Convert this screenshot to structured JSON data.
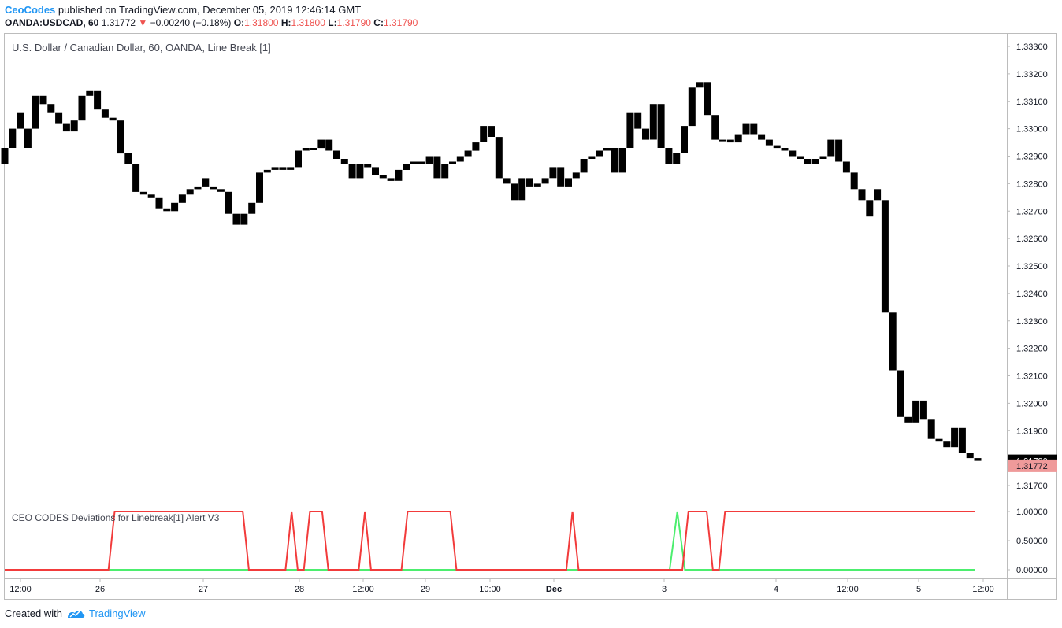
{
  "header": {
    "author": "CeoCodes",
    "published_text": "published on TradingView.com, December 05, 2019 12:46:14 GMT",
    "symbol": "OANDA:USDCAD, 60",
    "last": "1.31772",
    "change_arrow": "▼",
    "change": "−0.00240 (−0.18%)",
    "o_label": "O:",
    "o_value": "1.31800",
    "h_label": "H:",
    "h_value": "1.31800",
    "l_label": "L:",
    "l_value": "1.31790",
    "c_label": "C:",
    "c_value": "1.31790"
  },
  "footer": {
    "created_with": "Created with",
    "brand": "TradingView",
    "logo_icon": "tradingview-logo-icon"
  },
  "colors": {
    "bar": "#000000",
    "axis_border": "#bcbcbc",
    "text": "#131722",
    "down": "#ef5350",
    "last_tag": "#ef9a9a",
    "green_line": "#4cee6e",
    "red_line": "#f23b3b"
  },
  "chart_data": [
    {
      "type": "bar",
      "subtype": "line_break",
      "title": "U.S. Dollar / Canadian Dollar, 60, OANDA, Line Break [1]",
      "ylim": [
        1.3165,
        1.3335
      ],
      "y_ticks": [
        "1.33300",
        "1.33200",
        "1.33100",
        "1.33000",
        "1.32900",
        "1.32800",
        "1.32700",
        "1.32600",
        "1.32500",
        "1.32400",
        "1.32300",
        "1.32200",
        "1.32100",
        "1.32000",
        "1.31900",
        "1.31700"
      ],
      "price_tags": [
        {
          "label": "1.31790",
          "value": 1.3179,
          "style": "dark"
        },
        {
          "label": "1.31772",
          "value": 1.31772,
          "style": "light"
        }
      ],
      "x_labels": [
        "12:00",
        "26",
        "27",
        "28",
        "12:00",
        "29",
        "10:00",
        "Dec",
        "3",
        "4",
        "12:00",
        "5",
        "12:00"
      ],
      "bricks": [
        [
          1.3287,
          1.3293
        ],
        [
          1.3293,
          1.33
        ],
        [
          1.33,
          1.3306
        ],
        [
          1.33,
          1.3293
        ],
        [
          1.33,
          1.3312
        ],
        [
          1.3312,
          1.3309
        ],
        [
          1.3309,
          1.3306
        ],
        [
          1.3306,
          1.3302
        ],
        [
          1.3302,
          1.3299
        ],
        [
          1.3299,
          1.3303
        ],
        [
          1.3303,
          1.3312
        ],
        [
          1.3312,
          1.3314
        ],
        [
          1.3314,
          1.3307
        ],
        [
          1.3307,
          1.3304
        ],
        [
          1.3304,
          1.3303
        ],
        [
          1.3303,
          1.3291
        ],
        [
          1.3291,
          1.3287
        ],
        [
          1.3287,
          1.3277
        ],
        [
          1.3277,
          1.3276
        ],
        [
          1.3276,
          1.3275
        ],
        [
          1.3275,
          1.3271
        ],
        [
          1.3271,
          1.327
        ],
        [
          1.327,
          1.3273
        ],
        [
          1.3273,
          1.3276
        ],
        [
          1.3276,
          1.3278
        ],
        [
          1.3278,
          1.3279
        ],
        [
          1.3279,
          1.3282
        ],
        [
          1.3279,
          1.3278
        ],
        [
          1.3278,
          1.3277
        ],
        [
          1.3277,
          1.3269
        ],
        [
          1.3269,
          1.3265
        ],
        [
          1.3265,
          1.3269
        ],
        [
          1.3269,
          1.3273
        ],
        [
          1.3273,
          1.3284
        ],
        [
          1.3284,
          1.3285
        ],
        [
          1.3285,
          1.3286
        ],
        [
          1.3286,
          1.3285
        ],
        [
          1.3285,
          1.3286
        ],
        [
          1.3286,
          1.3292
        ],
        [
          1.3292,
          1.3293
        ],
        [
          1.3293,
          1.3293
        ],
        [
          1.3293,
          1.3296
        ],
        [
          1.3296,
          1.3292
        ],
        [
          1.3292,
          1.3289
        ],
        [
          1.3289,
          1.3287
        ],
        [
          1.3287,
          1.3282
        ],
        [
          1.3282,
          1.3287
        ],
        [
          1.3287,
          1.3286
        ],
        [
          1.3286,
          1.3283
        ],
        [
          1.3283,
          1.3282
        ],
        [
          1.3282,
          1.3281
        ],
        [
          1.3281,
          1.3285
        ],
        [
          1.3285,
          1.3287
        ],
        [
          1.3287,
          1.3288
        ],
        [
          1.3288,
          1.3287
        ],
        [
          1.3287,
          1.329
        ],
        [
          1.329,
          1.3282
        ],
        [
          1.3282,
          1.3287
        ],
        [
          1.3287,
          1.3288
        ],
        [
          1.3288,
          1.329
        ],
        [
          1.329,
          1.3292
        ],
        [
          1.3292,
          1.3295
        ],
        [
          1.3295,
          1.3301
        ],
        [
          1.3301,
          1.3297
        ],
        [
          1.3297,
          1.3282
        ],
        [
          1.3282,
          1.328
        ],
        [
          1.328,
          1.3274
        ],
        [
          1.3274,
          1.3282
        ],
        [
          1.3282,
          1.3279
        ],
        [
          1.3279,
          1.328
        ],
        [
          1.328,
          1.3282
        ],
        [
          1.3282,
          1.3286
        ],
        [
          1.3286,
          1.3279
        ],
        [
          1.3279,
          1.3282
        ],
        [
          1.3282,
          1.3284
        ],
        [
          1.3284,
          1.3289
        ],
        [
          1.3289,
          1.329
        ],
        [
          1.329,
          1.3292
        ],
        [
          1.3292,
          1.3293
        ],
        [
          1.3293,
          1.3284
        ],
        [
          1.3284,
          1.3293
        ],
        [
          1.3293,
          1.3306
        ],
        [
          1.3306,
          1.33
        ],
        [
          1.33,
          1.3296
        ],
        [
          1.3296,
          1.3309
        ],
        [
          1.3309,
          1.3293
        ],
        [
          1.3293,
          1.3287
        ],
        [
          1.3287,
          1.3291
        ],
        [
          1.3291,
          1.3301
        ],
        [
          1.3301,
          1.3315
        ],
        [
          1.3315,
          1.3317
        ],
        [
          1.3317,
          1.3305
        ],
        [
          1.3305,
          1.3296
        ],
        [
          1.3296,
          1.3296
        ],
        [
          1.3296,
          1.3295
        ],
        [
          1.3295,
          1.3298
        ],
        [
          1.3298,
          1.3302
        ],
        [
          1.3302,
          1.3298
        ],
        [
          1.3298,
          1.3296
        ],
        [
          1.3296,
          1.3294
        ],
        [
          1.3294,
          1.3293
        ],
        [
          1.3293,
          1.3292
        ],
        [
          1.3292,
          1.329
        ],
        [
          1.329,
          1.3289
        ],
        [
          1.3289,
          1.3287
        ],
        [
          1.3287,
          1.3289
        ],
        [
          1.3289,
          1.329
        ],
        [
          1.329,
          1.3296
        ],
        [
          1.3296,
          1.3288
        ],
        [
          1.3288,
          1.3284
        ],
        [
          1.3284,
          1.3278
        ],
        [
          1.3278,
          1.3274
        ],
        [
          1.3274,
          1.3268
        ],
        [
          1.3274,
          1.3278
        ],
        [
          1.3274,
          1.3233
        ],
        [
          1.3233,
          1.3212
        ],
        [
          1.3212,
          1.3195
        ],
        [
          1.3195,
          1.3193
        ],
        [
          1.3193,
          1.3201
        ],
        [
          1.3201,
          1.3194
        ],
        [
          1.3194,
          1.3187
        ],
        [
          1.3187,
          1.3186
        ],
        [
          1.3186,
          1.3184
        ],
        [
          1.3184,
          1.3191
        ],
        [
          1.3191,
          1.3182
        ],
        [
          1.3182,
          1.318
        ],
        [
          1.318,
          1.3179
        ]
      ]
    },
    {
      "type": "line",
      "title": "CEO CODES Deviations for Linebreak[1] Alert V3",
      "ylim": [
        -0.1,
        1.1
      ],
      "y_ticks": [
        "1.00000",
        "0.50000",
        "0.00000"
      ],
      "series": [
        {
          "color": "#4cee6e",
          "values": [
            0,
            0,
            0,
            0,
            0,
            0,
            0,
            0,
            0,
            0,
            0,
            0,
            0,
            0,
            0,
            0,
            0,
            0,
            0,
            0,
            0,
            0,
            0,
            0,
            0,
            0,
            0,
            0,
            0,
            0,
            0,
            0,
            0,
            0,
            0,
            0,
            0,
            0,
            0,
            0,
            0,
            0,
            0,
            0,
            0,
            0,
            0,
            0,
            0,
            0,
            0,
            0,
            0,
            0,
            0,
            0,
            0,
            0,
            0,
            0,
            0,
            0,
            0,
            0,
            0,
            0,
            0,
            0,
            0,
            0,
            0,
            0,
            0,
            0,
            0,
            0,
            0,
            0,
            0,
            0,
            0,
            0,
            0,
            0,
            0,
            0,
            0,
            0,
            1,
            0,
            0,
            0,
            0,
            0,
            0,
            0,
            0,
            0,
            0,
            0,
            0,
            0,
            0,
            0,
            0,
            0,
            0,
            0,
            0,
            0,
            0,
            0,
            0,
            0,
            0,
            0,
            0,
            0,
            0,
            0,
            0,
            0,
            0,
            0,
            0,
            0,
            0,
            0
          ]
        },
        {
          "color": "#f23b3b",
          "values": [
            0,
            0,
            0,
            0,
            0,
            0,
            0,
            0,
            0,
            0,
            0,
            0,
            0,
            0,
            0,
            0,
            0,
            0,
            1,
            1,
            1,
            1,
            1,
            1,
            1,
            1,
            1,
            1,
            1,
            1,
            1,
            1,
            1,
            1,
            1,
            1,
            1,
            1,
            1,
            1,
            0,
            0,
            0,
            0,
            0,
            0,
            0,
            1,
            0,
            0,
            1,
            1,
            1,
            0,
            0,
            0,
            0,
            0,
            0,
            1,
            0,
            0,
            0,
            0,
            0,
            0,
            1,
            1,
            1,
            1,
            1,
            1,
            1,
            1,
            0,
            0,
            0,
            0,
            0,
            0,
            0,
            0,
            0,
            0,
            0,
            0,
            0,
            0,
            0,
            0,
            0,
            0,
            0,
            1,
            0,
            0,
            0,
            0,
            0,
            0,
            0,
            0,
            0,
            0,
            0,
            0,
            0,
            0,
            0,
            0,
            0,
            0,
            1,
            1,
            1,
            1,
            0,
            0,
            1,
            1,
            1,
            1,
            1,
            1,
            1,
            1,
            1,
            1,
            1,
            1,
            1,
            1,
            1,
            1,
            1,
            1,
            1,
            1,
            1,
            1,
            1,
            1,
            1,
            1,
            1,
            1,
            1,
            1,
            1,
            1,
            1,
            1,
            1,
            1,
            1,
            1,
            1,
            1,
            1,
            1
          ]
        }
      ]
    }
  ]
}
